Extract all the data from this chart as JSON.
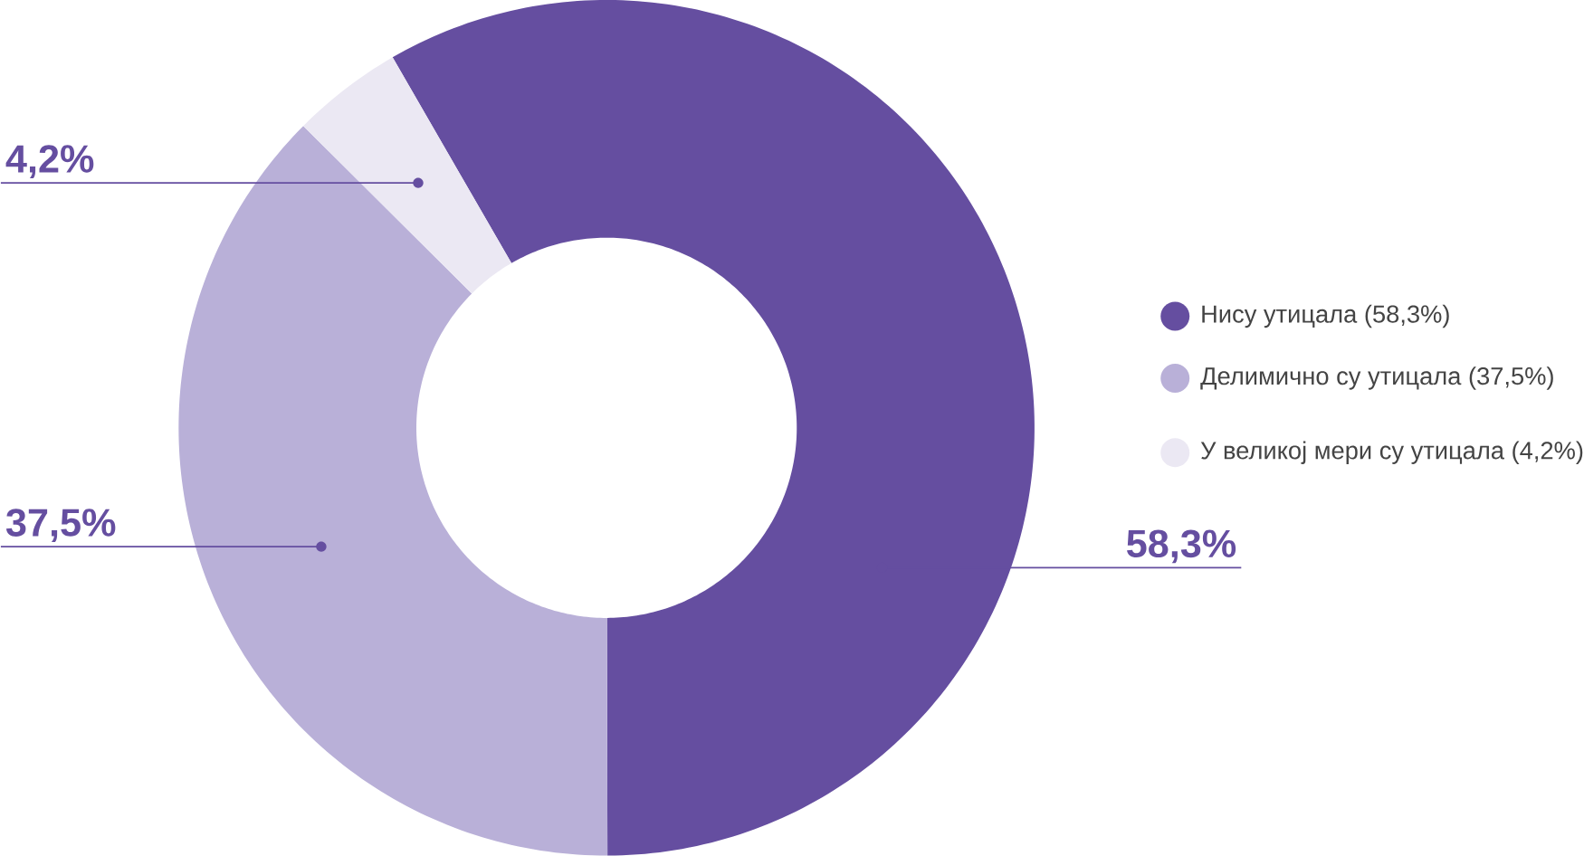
{
  "chart_data": {
    "type": "donut",
    "categories": [
      "Нису утицала (58,3%)",
      "Делимично су утицала (37,5%)",
      "У великој мери су утицала (4,2%)"
    ],
    "values": [
      58.3,
      37.5,
      4.2
    ],
    "colors": [
      "#654ea0",
      "#b9b0d8",
      "#ebe8f3"
    ],
    "value_labels": [
      "58,3%",
      "37,5%",
      "4,2%"
    ],
    "legend": "right"
  }
}
